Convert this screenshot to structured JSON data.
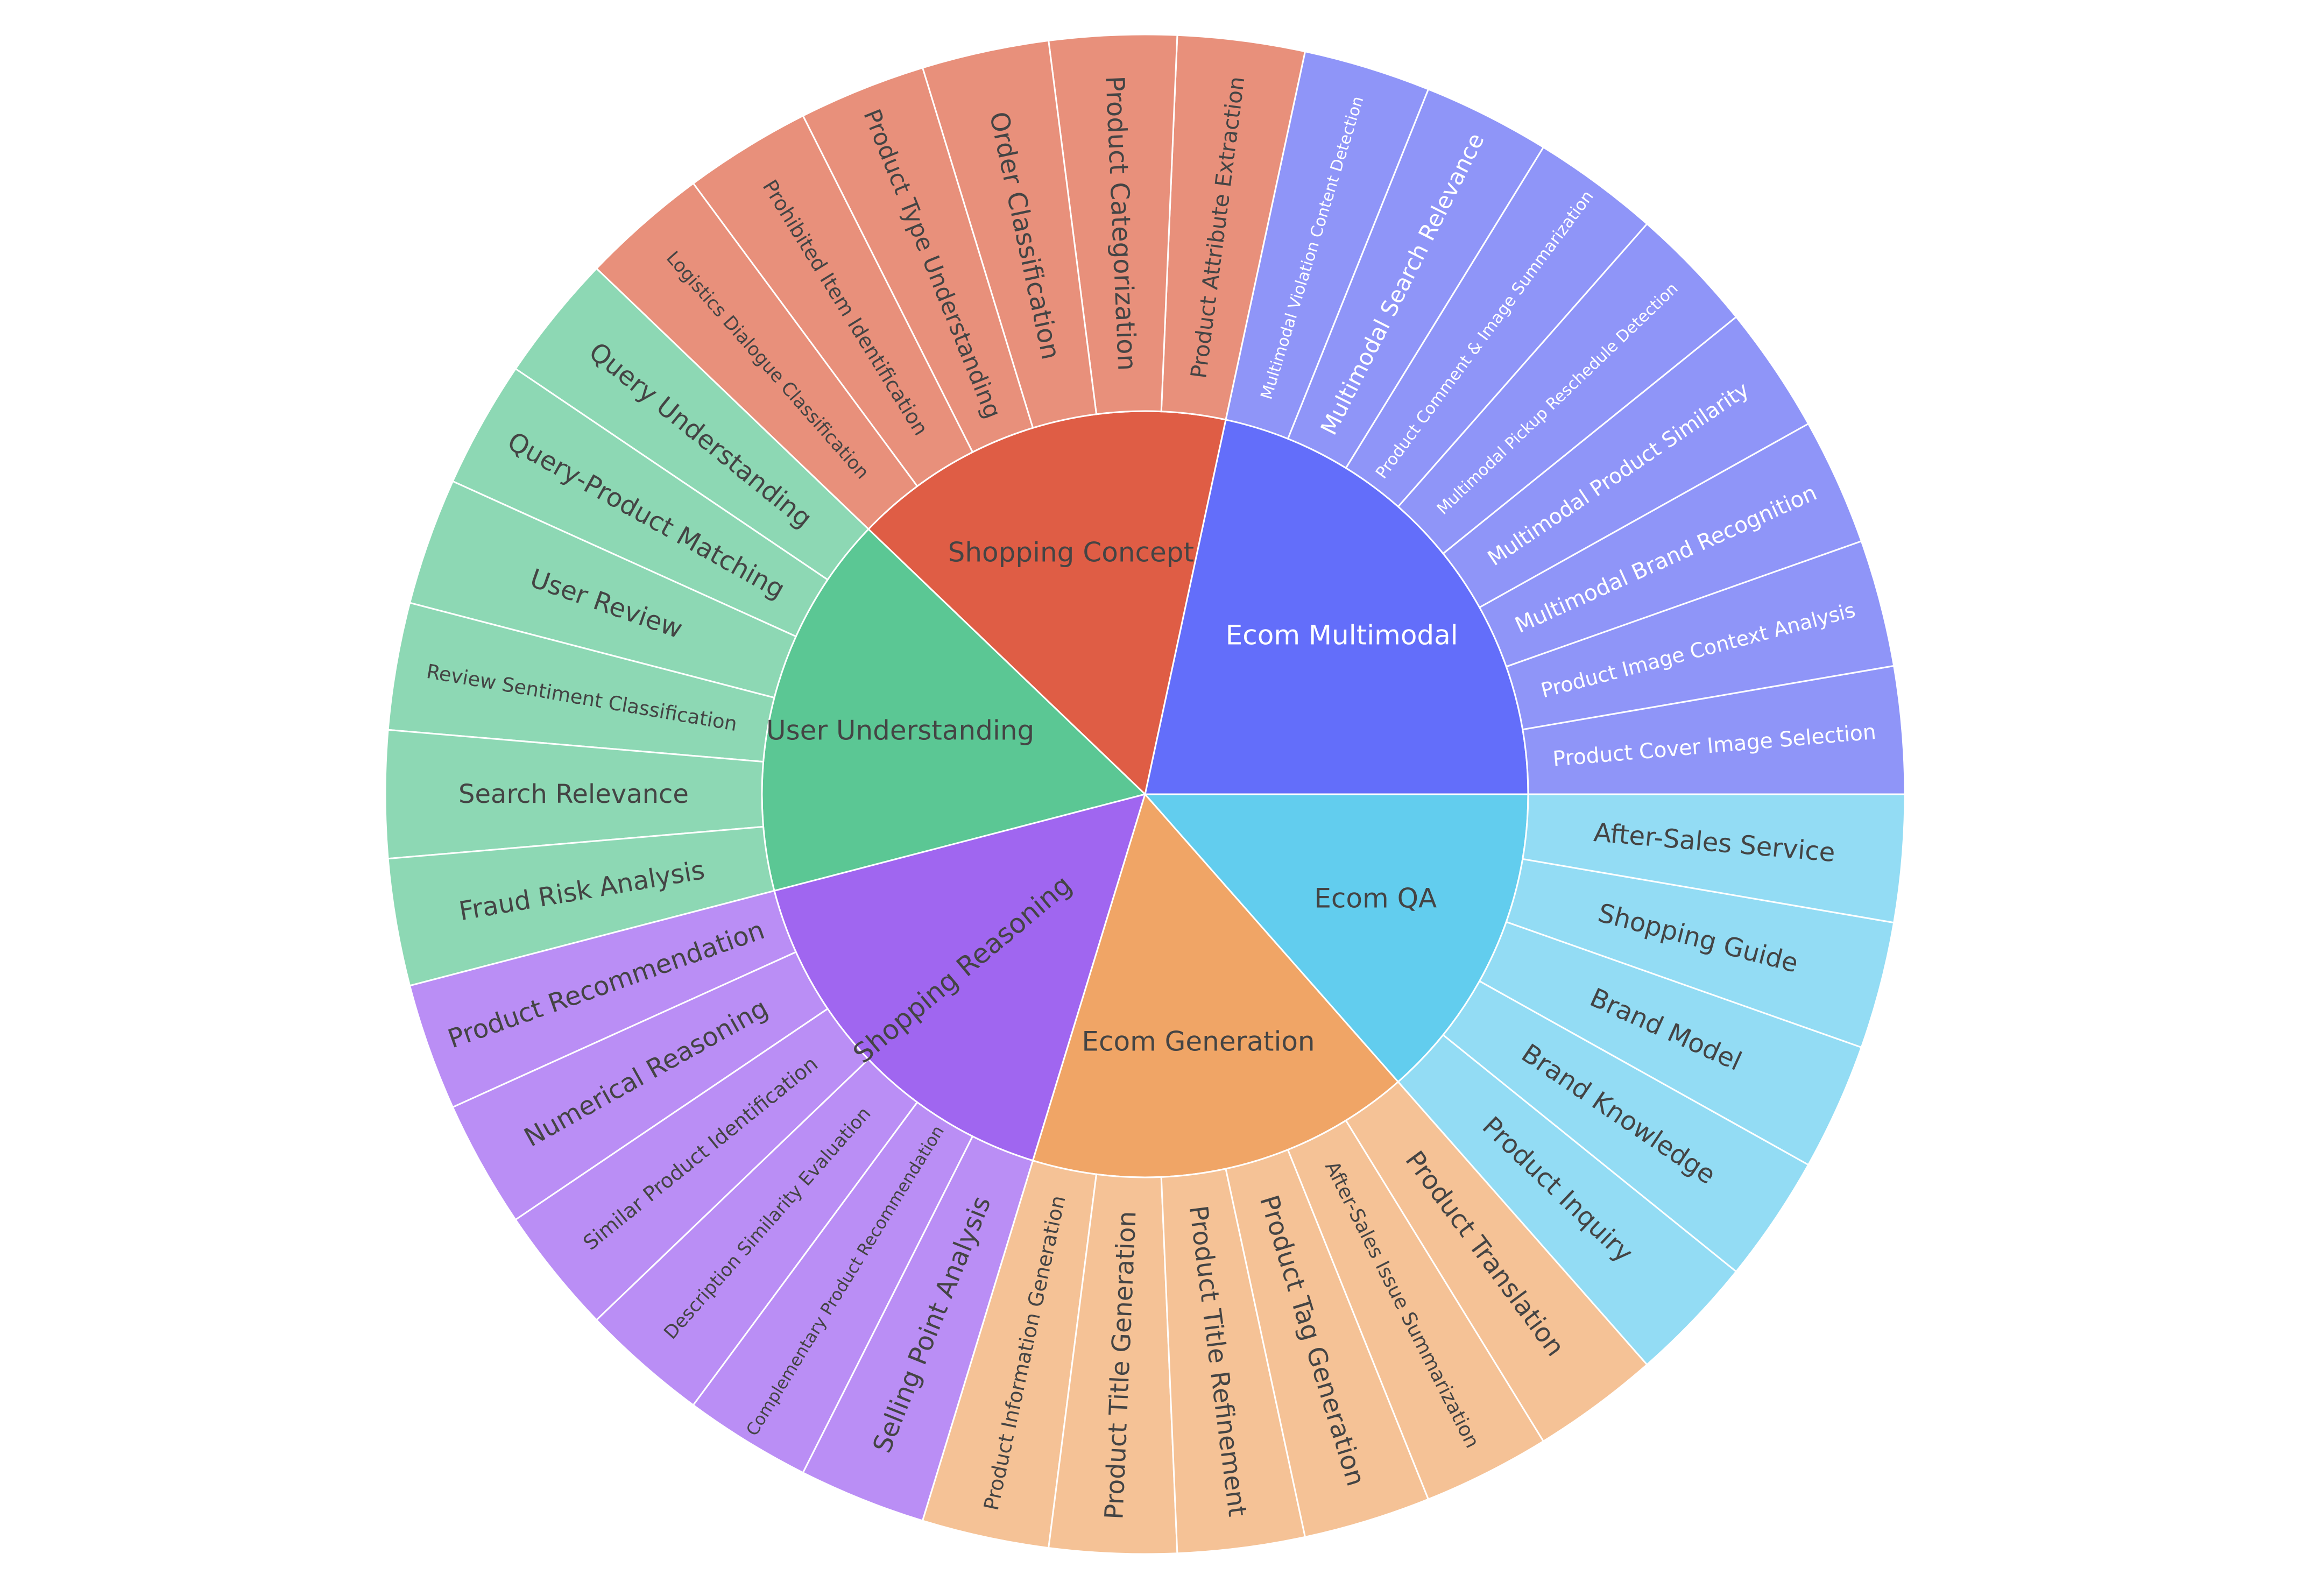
{
  "chart_data": {
    "type": "sunburst",
    "title": "",
    "text_color_dark": "#444444",
    "text_color_light": "#ffffff",
    "groups": [
      {
        "label": "Ecom Multimodal",
        "color": "#636efa",
        "leaf_color": "#8f95f8",
        "light_text": true,
        "children": [
          {
            "label": "Product Cover Image Selection",
            "value": 1
          },
          {
            "label": "Product Image Context Analysis",
            "value": 1
          },
          {
            "label": "Multimodal Brand Recognition",
            "value": 1
          },
          {
            "label": "Multimodal Product Similarity",
            "value": 1
          },
          {
            "label": "Multimodal Pickup Reschedule Detection",
            "value": 1
          },
          {
            "label": "Product Comment & Image Summarization",
            "value": 1
          },
          {
            "label": "Multimodal Search Relevance",
            "value": 1
          },
          {
            "label": "Multimodal Violation Content Detection",
            "value": 1
          }
        ]
      },
      {
        "label": "Shopping Concept",
        "color": "#df5d45",
        "leaf_color": "#e8907b",
        "light_text": false,
        "children": [
          {
            "label": "Product Attribute Extraction",
            "value": 1
          },
          {
            "label": "Product Categorization",
            "value": 1
          },
          {
            "label": "Order Classification",
            "value": 1
          },
          {
            "label": "Product Type Understanding",
            "value": 1
          },
          {
            "label": "Prohibited Item Identification",
            "value": 1
          },
          {
            "label": "Logistics Dialogue Classification",
            "value": 1
          }
        ]
      },
      {
        "label": "User Understanding",
        "color": "#5bc794",
        "leaf_color": "#8dd8b4",
        "light_text": false,
        "children": [
          {
            "label": "Query Understanding",
            "value": 1
          },
          {
            "label": "Query-Product Matching",
            "value": 1
          },
          {
            "label": "User Review",
            "value": 1
          },
          {
            "label": "Review Sentiment Classification",
            "value": 1
          },
          {
            "label": "Search Relevance",
            "value": 1
          },
          {
            "label": "Fraud Risk Analysis",
            "value": 1
          }
        ]
      },
      {
        "label": "Shopping Reasoning",
        "color": "#a066f0",
        "leaf_color": "#ba8ef5",
        "light_text": false,
        "children": [
          {
            "label": "Product Recommendation",
            "value": 1
          },
          {
            "label": "Numerical Reasoning",
            "value": 1
          },
          {
            "label": "Similar Product Identification",
            "value": 1
          },
          {
            "label": "Description Similarity Evaluation",
            "value": 1
          },
          {
            "label": "Complementary Product Recommendation",
            "value": 1
          },
          {
            "label": "Selling Point Analysis",
            "value": 1
          }
        ]
      },
      {
        "label": "Ecom Generation",
        "color": "#f0a566",
        "leaf_color": "#f5c296",
        "light_text": false,
        "children": [
          {
            "label": "Product Information Generation",
            "value": 1
          },
          {
            "label": "Product Title Generation",
            "value": 1
          },
          {
            "label": "Product Title Refinement",
            "value": 1
          },
          {
            "label": "Product Tag Generation",
            "value": 1
          },
          {
            "label": "After-Sales Issue Summarization",
            "value": 1
          },
          {
            "label": "Product Translation",
            "value": 1
          }
        ]
      },
      {
        "label": "Ecom QA",
        "color": "#62cdee",
        "leaf_color": "#93dcf4",
        "light_text": false,
        "children": [
          {
            "label": "Product Inquiry",
            "value": 1
          },
          {
            "label": "Brand Knowledge",
            "value": 1
          },
          {
            "label": "Brand Model",
            "value": 1
          },
          {
            "label": "Shopping Guide",
            "value": 1
          },
          {
            "label": "After-Sales Service",
            "value": 1
          }
        ]
      }
    ]
  }
}
